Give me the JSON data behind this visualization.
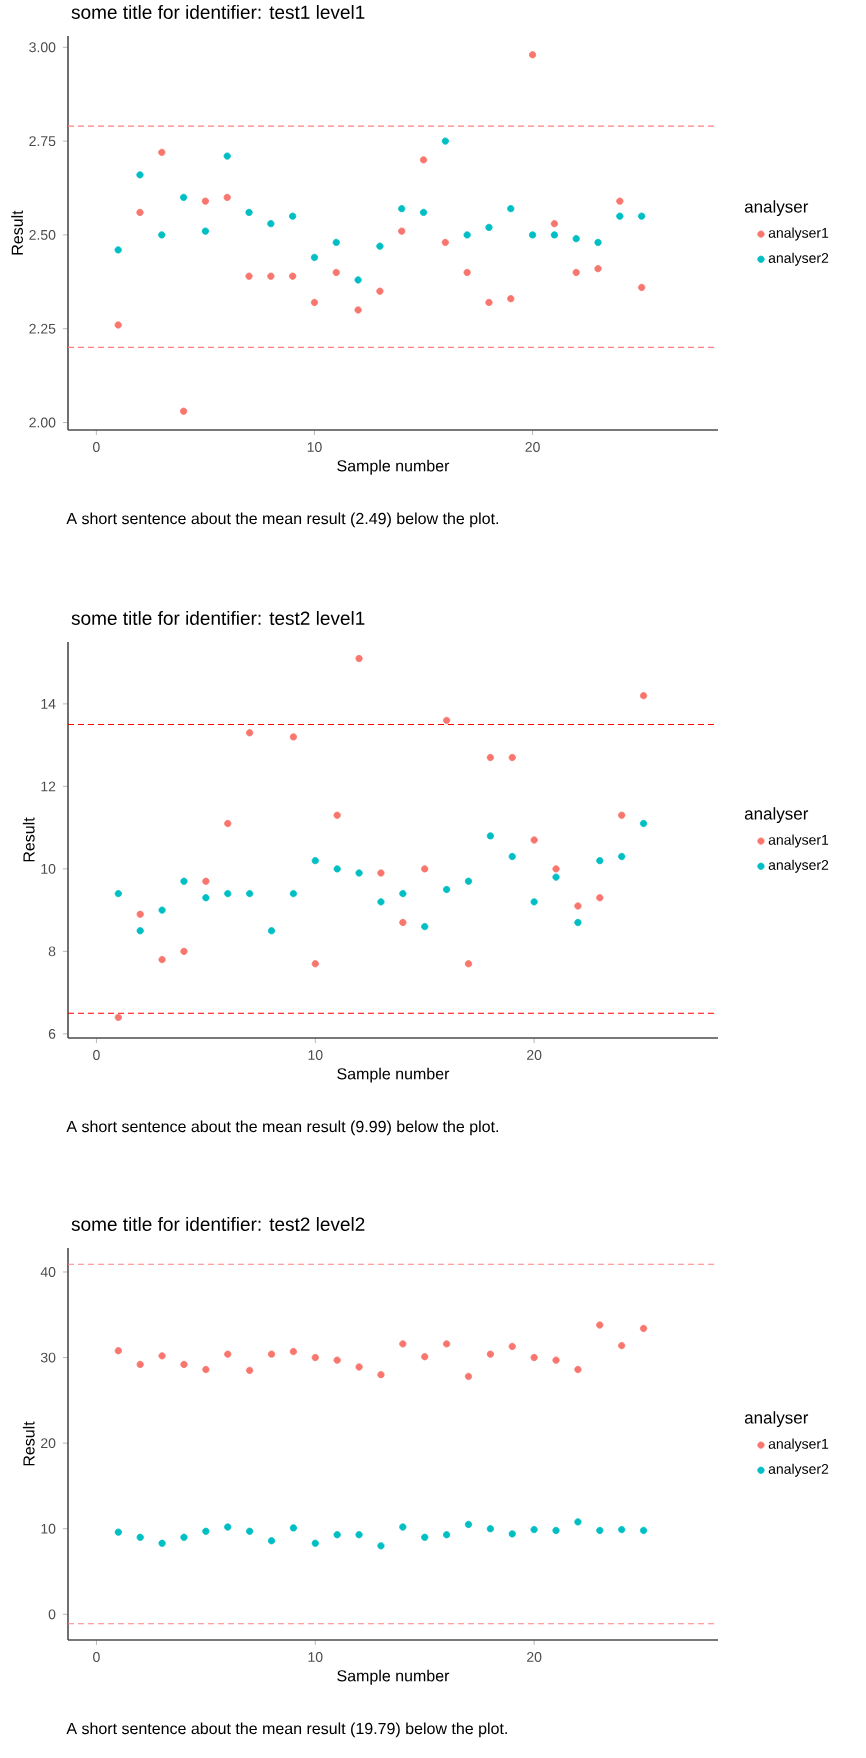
{
  "chart_data": [
    {
      "type": "scatter",
      "title": "some title for identifier:  test1 level1",
      "xlabel": "Sample number",
      "ylabel": "Result",
      "legend_title": "analyser",
      "legend": "right",
      "annotations": [
        "A short sentence about the mean result (2.49) below the plot."
      ],
      "x": [
        1,
        2,
        3,
        4,
        5,
        6,
        7,
        8,
        9,
        10,
        11,
        12,
        13,
        14,
        15,
        16,
        17,
        18,
        19,
        20,
        21,
        22,
        23,
        24,
        25
      ],
      "xlim": [
        -1.3,
        28.5
      ],
      "ylim": [
        1.98,
        3.03
      ],
      "xticks": [
        0,
        10,
        20
      ],
      "yticks": [
        {
          "value": 2,
          "label": "2.00"
        },
        {
          "value": 2.25,
          "label": "2.25"
        },
        {
          "value": 2.5,
          "label": "2.50"
        },
        {
          "value": 2.75,
          "label": "2.75"
        },
        {
          "value": 3,
          "label": "3.00"
        }
      ],
      "ref_lines": [
        {
          "axis": "y",
          "value": 2.79,
          "color": "#ff8080",
          "line_style": "dashed"
        },
        {
          "axis": "y",
          "value": 2.2,
          "color": "#ff8080",
          "line_style": "dashed"
        }
      ],
      "series": [
        {
          "name": "analyser1",
          "color": "#f8766d",
          "values": [
            2.26,
            2.56,
            2.72,
            2.03,
            2.59,
            2.6,
            2.39,
            2.39,
            2.39,
            2.32,
            2.4,
            2.3,
            2.35,
            2.51,
            2.7,
            2.48,
            2.4,
            2.32,
            2.33,
            2.98,
            2.53,
            2.4,
            2.41,
            2.59,
            2.36
          ]
        },
        {
          "name": "analyser2",
          "color": "#00bfc4",
          "values": [
            2.46,
            2.66,
            2.5,
            2.6,
            2.51,
            2.71,
            2.56,
            2.53,
            2.55,
            2.44,
            2.48,
            2.38,
            2.47,
            2.57,
            2.56,
            2.75,
            2.5,
            2.52,
            2.57,
            2.5,
            2.5,
            2.49,
            2.48,
            2.55,
            2.55
          ]
        }
      ]
    },
    {
      "type": "scatter",
      "title": "some title for identifier:  test2 level1",
      "xlabel": "Sample number",
      "ylabel": "Result",
      "legend_title": "analyser",
      "legend": "right",
      "annotations": [
        "A short sentence about the mean result (9.99) below the plot."
      ],
      "x": [
        1,
        2,
        3,
        4,
        5,
        6,
        7,
        8,
        9,
        10,
        11,
        12,
        13,
        14,
        15,
        16,
        17,
        18,
        19,
        20,
        21,
        22,
        23,
        24,
        25
      ],
      "xlim": [
        -1.3,
        28.4
      ],
      "ylim": [
        5.9,
        15.5
      ],
      "xticks": [
        0,
        10,
        20
      ],
      "yticks": [
        6,
        8,
        10,
        12,
        14
      ],
      "ref_lines": [
        {
          "axis": "y",
          "value": 13.5,
          "color": "#ff0000",
          "line_style": "dashed"
        },
        {
          "axis": "y",
          "value": 6.5,
          "color": "#ff0000",
          "line_style": "dashed"
        }
      ],
      "series": [
        {
          "name": "analyser1",
          "color": "#f8766d",
          "values": [
            6.4,
            8.9,
            7.8,
            8.0,
            9.7,
            11.1,
            13.3,
            null,
            13.2,
            7.7,
            11.3,
            15.1,
            9.9,
            8.7,
            10.0,
            13.6,
            7.7,
            12.7,
            12.7,
            10.7,
            10.0,
            9.1,
            9.3,
            11.3,
            14.2
          ]
        },
        {
          "name": "analyser2",
          "color": "#00bfc4",
          "values": [
            9.4,
            8.5,
            9.0,
            9.7,
            9.3,
            9.4,
            9.4,
            8.5,
            9.4,
            10.2,
            10.0,
            9.9,
            9.2,
            9.4,
            8.6,
            9.5,
            9.7,
            10.8,
            10.3,
            9.2,
            9.8,
            8.7,
            10.2,
            10.3,
            11.1
          ]
        }
      ]
    },
    {
      "type": "scatter",
      "title": "some title for identifier:  test2 level2",
      "xlabel": "Sample number",
      "ylabel": "Result",
      "legend_title": "analyser",
      "legend": "right",
      "annotations": [
        "A short sentence about the mean result (19.79) below the plot."
      ],
      "x": [
        1,
        2,
        3,
        4,
        5,
        6,
        7,
        8,
        9,
        10,
        11,
        12,
        13,
        14,
        15,
        16,
        17,
        18,
        19,
        20,
        21,
        22,
        23,
        24,
        25
      ],
      "xlim": [
        -1.3,
        28.4
      ],
      "ylim": [
        -3,
        42.8
      ],
      "xticks": [
        0,
        10,
        20
      ],
      "yticks": [
        0,
        10,
        20,
        30,
        40
      ],
      "ref_lines": [
        {
          "axis": "y",
          "value": 40.9,
          "color": "#ff8080",
          "line_style": "dashed"
        },
        {
          "axis": "y",
          "value": -1.1,
          "color": "#ff8080",
          "line_style": "dashed"
        }
      ],
      "series": [
        {
          "name": "analyser1",
          "color": "#f8766d",
          "values": [
            30.8,
            29.2,
            30.2,
            29.2,
            28.6,
            30.4,
            28.5,
            30.4,
            30.7,
            30.0,
            29.7,
            28.9,
            28.0,
            31.6,
            30.1,
            31.6,
            27.8,
            30.4,
            31.3,
            30.0,
            29.7,
            28.6,
            33.8,
            31.4,
            33.4
          ]
        },
        {
          "name": "analyser2",
          "color": "#00bfc4",
          "values": [
            9.6,
            9.0,
            8.3,
            9.0,
            9.7,
            10.2,
            9.7,
            8.6,
            10.1,
            8.3,
            9.3,
            9.3,
            8.0,
            10.2,
            9.0,
            9.3,
            10.5,
            10.0,
            9.4,
            9.9,
            9.8,
            10.8,
            9.8,
            9.9,
            9.8
          ]
        }
      ]
    }
  ]
}
